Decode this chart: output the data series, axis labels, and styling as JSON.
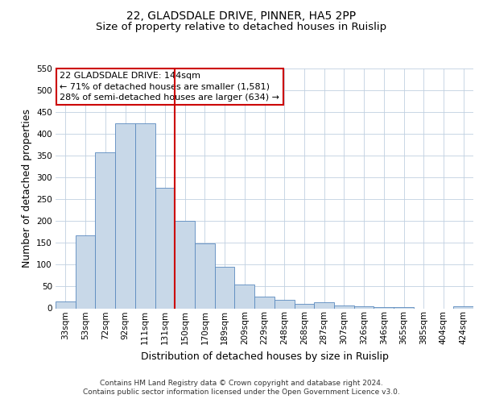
{
  "title_line1": "22, GLADSDALE DRIVE, PINNER, HA5 2PP",
  "title_line2": "Size of property relative to detached houses in Ruislip",
  "xlabel": "Distribution of detached houses by size in Ruislip",
  "ylabel": "Number of detached properties",
  "categories": [
    "33sqm",
    "53sqm",
    "72sqm",
    "92sqm",
    "111sqm",
    "131sqm",
    "150sqm",
    "170sqm",
    "189sqm",
    "209sqm",
    "229sqm",
    "248sqm",
    "268sqm",
    "287sqm",
    "307sqm",
    "326sqm",
    "346sqm",
    "365sqm",
    "385sqm",
    "404sqm",
    "424sqm"
  ],
  "bar_values": [
    15,
    168,
    357,
    425,
    425,
    277,
    200,
    148,
    96,
    54,
    27,
    20,
    10,
    13,
    6,
    4,
    2,
    2,
    0,
    0,
    4
  ],
  "bar_color": "#c8d8e8",
  "bar_edge_color": "#5a8abf",
  "vline_x_index": 6,
  "vline_color": "#cc0000",
  "ylim": [
    0,
    550
  ],
  "yticks": [
    0,
    50,
    100,
    150,
    200,
    250,
    300,
    350,
    400,
    450,
    500,
    550
  ],
  "annotation_title": "22 GLADSDALE DRIVE: 144sqm",
  "annotation_line1": "← 71% of detached houses are smaller (1,581)",
  "annotation_line2": "28% of semi-detached houses are larger (634) →",
  "annotation_box_color": "#ffffff",
  "annotation_box_edge": "#cc0000",
  "footer_line1": "Contains HM Land Registry data © Crown copyright and database right 2024.",
  "footer_line2": "Contains public sector information licensed under the Open Government Licence v3.0.",
  "background_color": "#ffffff",
  "grid_color": "#c0d0e0",
  "title_fontsize": 10,
  "subtitle_fontsize": 9.5,
  "axis_label_fontsize": 9,
  "tick_fontsize": 7.5,
  "annotation_fontsize": 8,
  "footer_fontsize": 6.5
}
